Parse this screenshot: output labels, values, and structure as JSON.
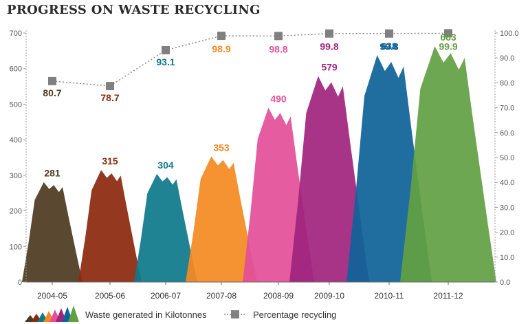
{
  "chart_data": {
    "type": "area",
    "title": "PROGRESS ON WASTE RECYCLING",
    "categories": [
      "2004-05",
      "2005-06",
      "2006-07",
      "2007-08",
      "2008-09",
      "2009-10",
      "2010-11",
      "2011-12"
    ],
    "series": [
      {
        "name": "Waste generated in Kilotonnes",
        "axis": "left",
        "values": [
          281,
          315,
          304,
          353,
          490,
          579,
          638,
          663
        ],
        "colors": [
          "#4f3a20",
          "#8c2a0e",
          "#0e7a8c",
          "#f48a22",
          "#e3509a",
          "#a0257e",
          "#0f6399",
          "#62a044"
        ]
      },
      {
        "name": "Percentage recycling",
        "axis": "right",
        "values": [
          80.7,
          78.7,
          93.1,
          98.9,
          98.8,
          99.8,
          99.8,
          99.9
        ],
        "label_colors": [
          "#4f3a20",
          "#8c2a0e",
          "#0e7a8c",
          "#f48a22",
          "#e3509a",
          "#a0257e",
          "#0f6399",
          "#62a044"
        ],
        "marker_color": "#808080"
      }
    ],
    "y_left": {
      "min": 0,
      "max": 700,
      "ticks": [
        "0",
        "100",
        "200",
        "300",
        "400",
        "500",
        "600",
        "700"
      ]
    },
    "y_right": {
      "min": 0,
      "max": 100,
      "ticks": [
        "0.0",
        "10.0",
        "20.0",
        "30.0",
        "40.0",
        "50.0",
        "60.0",
        "70.0",
        "80.0",
        "90.0",
        "100.0"
      ]
    },
    "grid": false,
    "legend_position": "bottom-left"
  }
}
